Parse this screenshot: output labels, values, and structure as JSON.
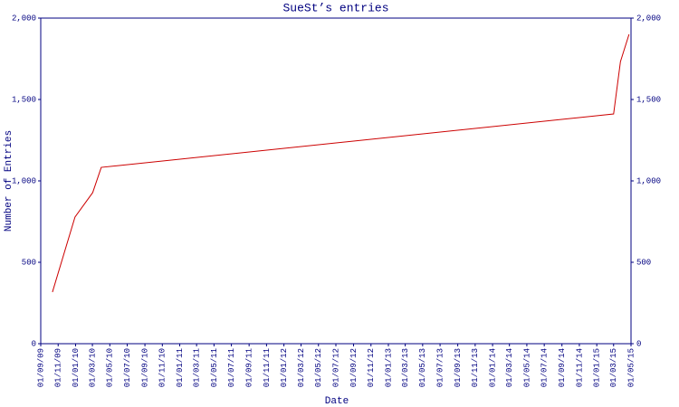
{
  "chart_data": {
    "type": "line",
    "title": "SueSt’s entries",
    "x_label": "Date",
    "y_label": "Number of Entries",
    "x": [
      "2009-10-12",
      "2009-12-30",
      "2010-03-02",
      "2010-04-01",
      "2015-03-01",
      "2015-03-25",
      "2015-04-24"
    ],
    "series": [
      {
        "color": "#cc0000",
        "values": [
          317,
          778,
          928,
          1083,
          1411,
          1733,
          1900
        ]
      }
    ],
    "xlim": [
      "2009-09-01",
      "2015-05-01"
    ],
    "xticks": [
      {
        "value": "2009-09-01",
        "label": "01/09/09"
      },
      {
        "value": "2009-11-01",
        "label": "01/11/09"
      },
      {
        "value": "2010-01-01",
        "label": "01/01/10"
      },
      {
        "value": "2010-03-01",
        "label": "01/03/10"
      },
      {
        "value": "2010-05-01",
        "label": "01/05/10"
      },
      {
        "value": "2010-07-01",
        "label": "01/07/10"
      },
      {
        "value": "2010-09-01",
        "label": "01/09/10"
      },
      {
        "value": "2010-11-01",
        "label": "01/11/10"
      },
      {
        "value": "2011-01-01",
        "label": "01/01/11"
      },
      {
        "value": "2011-03-01",
        "label": "01/03/11"
      },
      {
        "value": "2011-05-01",
        "label": "01/05/11"
      },
      {
        "value": "2011-07-01",
        "label": "01/07/11"
      },
      {
        "value": "2011-09-01",
        "label": "01/09/11"
      },
      {
        "value": "2011-11-01",
        "label": "01/11/11"
      },
      {
        "value": "2012-01-01",
        "label": "01/01/12"
      },
      {
        "value": "2012-03-01",
        "label": "01/03/12"
      },
      {
        "value": "2012-05-01",
        "label": "01/05/12"
      },
      {
        "value": "2012-07-01",
        "label": "01/07/12"
      },
      {
        "value": "2012-09-01",
        "label": "01/09/12"
      },
      {
        "value": "2012-11-01",
        "label": "01/11/12"
      },
      {
        "value": "2013-01-01",
        "label": "01/01/13"
      },
      {
        "value": "2013-03-01",
        "label": "01/03/13"
      },
      {
        "value": "2013-05-01",
        "label": "01/05/13"
      },
      {
        "value": "2013-07-01",
        "label": "01/07/13"
      },
      {
        "value": "2013-09-01",
        "label": "01/09/13"
      },
      {
        "value": "2013-11-01",
        "label": "01/11/13"
      },
      {
        "value": "2014-01-01",
        "label": "01/01/14"
      },
      {
        "value": "2014-03-01",
        "label": "01/03/14"
      },
      {
        "value": "2014-05-01",
        "label": "01/05/14"
      },
      {
        "value": "2014-07-01",
        "label": "01/07/14"
      },
      {
        "value": "2014-09-01",
        "label": "01/09/14"
      },
      {
        "value": "2014-11-01",
        "label": "01/11/14"
      },
      {
        "value": "2015-01-01",
        "label": "01/01/15"
      },
      {
        "value": "2015-03-01",
        "label": "01/03/15"
      },
      {
        "value": "2015-05-01",
        "label": "01/05/15"
      }
    ],
    "ylim": [
      0,
      2000
    ],
    "yticks": [
      0,
      500,
      {
        "value": 1000,
        "label": "1,000"
      },
      {
        "value": 1500,
        "label": "1,500"
      },
      {
        "value": 2000,
        "label": "2,000"
      }
    ],
    "y2lim": [
      0,
      2000
    ],
    "y2ticks": [
      0,
      500,
      {
        "value": 1000,
        "label": "1,000"
      },
      {
        "value": 1500,
        "label": "1,500"
      },
      {
        "value": 2000,
        "label": "2,000"
      }
    ],
    "axis_color": "#000080"
  }
}
